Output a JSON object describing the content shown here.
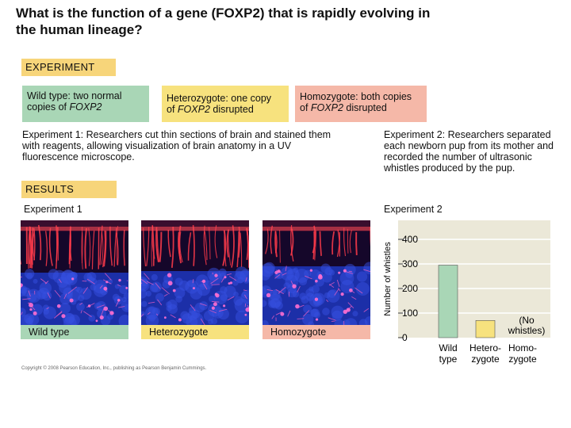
{
  "title_lines": [
    "What is the function of a gene (FOXP2) that is rapidly evolving in",
    "the human lineage?"
  ],
  "experiment_tag": "EXPERIMENT",
  "results_tag": "RESULTS",
  "genotypes": {
    "wild_type": {
      "line1": "Wild type: two normal",
      "line2_pre": "copies of ",
      "line2_gene": "FOXP2",
      "line2_post": ""
    },
    "heterozygote": {
      "line1": "Heterozygote: one copy",
      "line2_pre": "of ",
      "line2_gene": "FOXP2",
      "line2_post": " disrupted"
    },
    "homozygote": {
      "line1": "Homozygote: both copies",
      "line2_pre": "of ",
      "line2_gene": "FOXP2",
      "line2_post": " disrupted"
    }
  },
  "experiment1_desc": "Experiment 1: Researchers cut thin sections of brain and stained them with reagents, allowing visualization of brain anatomy in a UV fluorescence microscope.",
  "experiment2_desc": "Experiment 2: Researchers separated each newborn pup from its mother and recorded the number of ultrasonic whistles produced by the pup.",
  "experiment1_label": "Experiment 1",
  "experiment2_label": "Experiment 2",
  "micro_labels": {
    "wild_type": "Wild type",
    "heterozygote": "Heterozygote",
    "homozygote": "Homozygote"
  },
  "colors": {
    "wild_type": "#a9d6b6",
    "heterozygote": "#f7e27e",
    "homozygote": "#f5b8a8",
    "tag": "#f7d57a",
    "plot_bg": "#ebe8d8"
  },
  "chart_data": {
    "type": "bar",
    "ylabel": "Number of whistles",
    "ylim": [
      0,
      400
    ],
    "yticks": [
      0,
      100,
      200,
      300,
      400
    ],
    "categories": [
      {
        "lines": [
          "Wild",
          "type"
        ]
      },
      {
        "lines": [
          "Hetero-",
          "zygote"
        ]
      },
      {
        "lines": [
          "Homo-",
          "zygote"
        ]
      }
    ],
    "values": [
      295,
      70,
      0
    ],
    "bar_colors": [
      "#a9d6b6",
      "#f7e27e",
      "#f5b8a8"
    ],
    "annotation": {
      "lines": [
        "(No",
        "whistles)"
      ]
    }
  },
  "copyright": "Copyright © 2008 Pearson Education, Inc., publishing as Pearson Benjamin Cummings."
}
